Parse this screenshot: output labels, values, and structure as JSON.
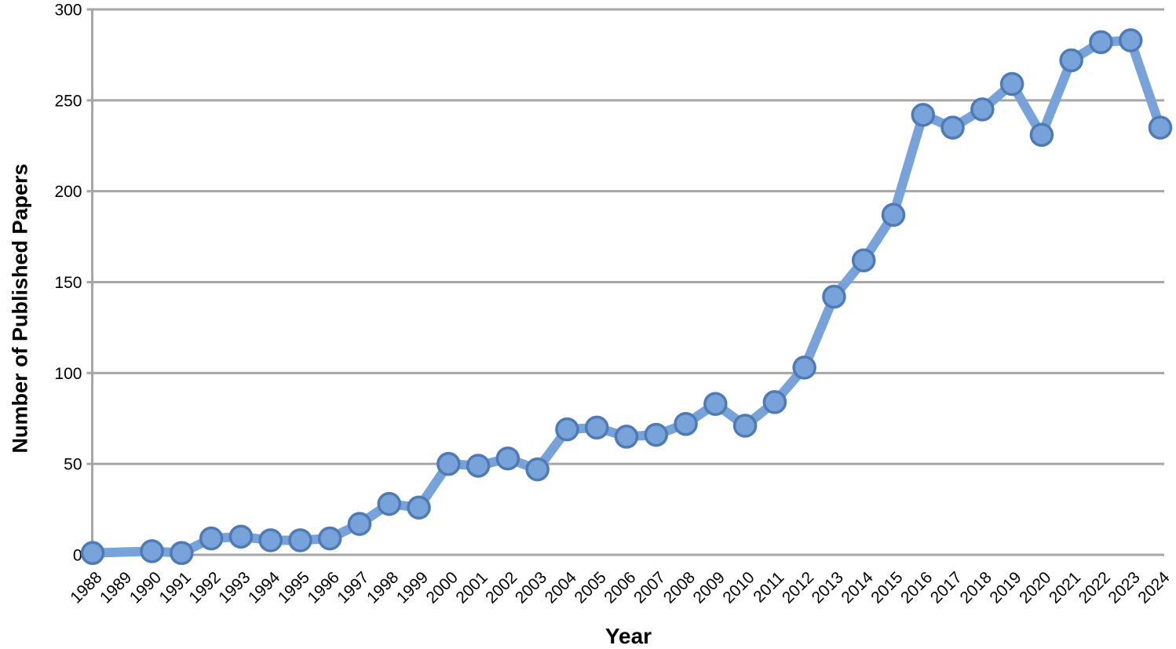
{
  "chart_data": {
    "type": "line",
    "title": "",
    "xlabel": "Year",
    "ylabel": "Number of Published Papers",
    "categories": [
      "1988",
      "1989",
      "1990",
      "1991",
      "1992",
      "1993",
      "1994",
      "1995",
      "1996",
      "1997",
      "1998",
      "1999",
      "2000",
      "2001",
      "2002",
      "2003",
      "2004",
      "2005",
      "2006",
      "2007",
      "2008",
      "2009",
      "2010",
      "2011",
      "2012",
      "2013",
      "2014",
      "2015",
      "2016",
      "2017",
      "2018",
      "2019",
      "2020",
      "2021",
      "2022",
      "2023",
      "2024"
    ],
    "series": [
      {
        "name": "Number of Published Papers",
        "values": [
          1,
          null,
          2,
          1,
          9,
          10,
          8,
          8,
          9,
          17,
          28,
          26,
          50,
          49,
          53,
          47,
          69,
          70,
          65,
          66,
          72,
          83,
          71,
          84,
          103,
          142,
          162,
          187,
          242,
          235,
          245,
          259,
          231,
          272,
          282,
          283,
          235
        ]
      }
    ],
    "missing_marker_years": [
      "1989"
    ],
    "ylim": [
      0,
      300
    ],
    "yticks": [
      0,
      50,
      100,
      150,
      200,
      250,
      300
    ],
    "grid": "horizontal-only",
    "legend": "none",
    "colors": {
      "line": "#78A2DA",
      "marker_fill": "#78A2DA",
      "marker_border": "#4E7AB5",
      "gridline": "#A6A6A6",
      "axis": "#A6A6A6",
      "tick_text": "#000000",
      "background": "#FFFFFF"
    }
  }
}
